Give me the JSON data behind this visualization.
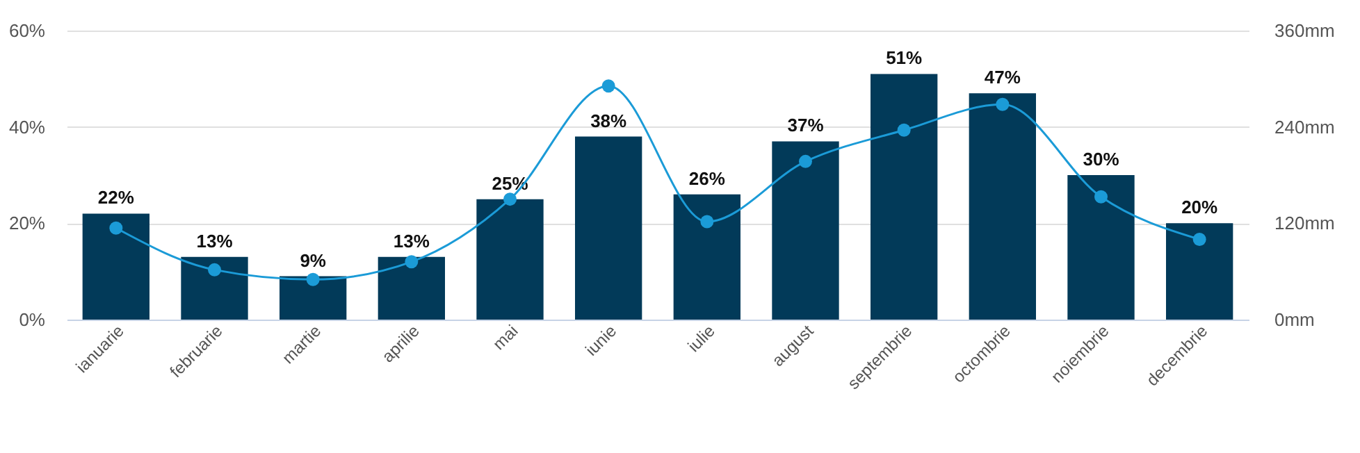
{
  "chart_data": {
    "type": "bar",
    "categories": [
      "ianuarie",
      "februarie",
      "martie",
      "aprilie",
      "mai",
      "iunie",
      "iulie",
      "august",
      "septembrie",
      "octombrie",
      "noiembrie",
      "decembrie"
    ],
    "series": [
      {
        "color": "#023a59",
        "values": [
          22,
          13,
          9,
          13,
          25,
          38,
          26,
          37,
          51,
          47,
          30,
          20
        ],
        "value_labels": [
          "22%",
          "13%",
          "9%",
          "13%",
          "25%",
          "38%",
          "26%",
          "37%",
          "51%",
          "47%",
          "30%",
          "20%"
        ]
      },
      {
        "type": "line",
        "axis": "y2",
        "color": "#1b9bd7",
        "values": [
          114,
          62,
          50,
          72,
          150,
          291,
          122,
          197,
          236,
          268,
          153,
          100
        ]
      }
    ],
    "ylim": [
      0,
      60
    ],
    "yticks": [
      {
        "value": 0,
        "label": "0%"
      },
      {
        "value": 20,
        "label": "20%"
      },
      {
        "value": 40,
        "label": "40%"
      },
      {
        "value": 60,
        "label": "60%"
      }
    ],
    "y2lim": [
      0,
      360
    ],
    "y2ticks": [
      {
        "value": 0,
        "label": "0mm"
      },
      {
        "value": 120,
        "label": "120mm"
      },
      {
        "value": 240,
        "label": "240mm"
      },
      {
        "value": 360,
        "label": "360mm"
      }
    ],
    "grid": "y",
    "marker": "circle"
  }
}
